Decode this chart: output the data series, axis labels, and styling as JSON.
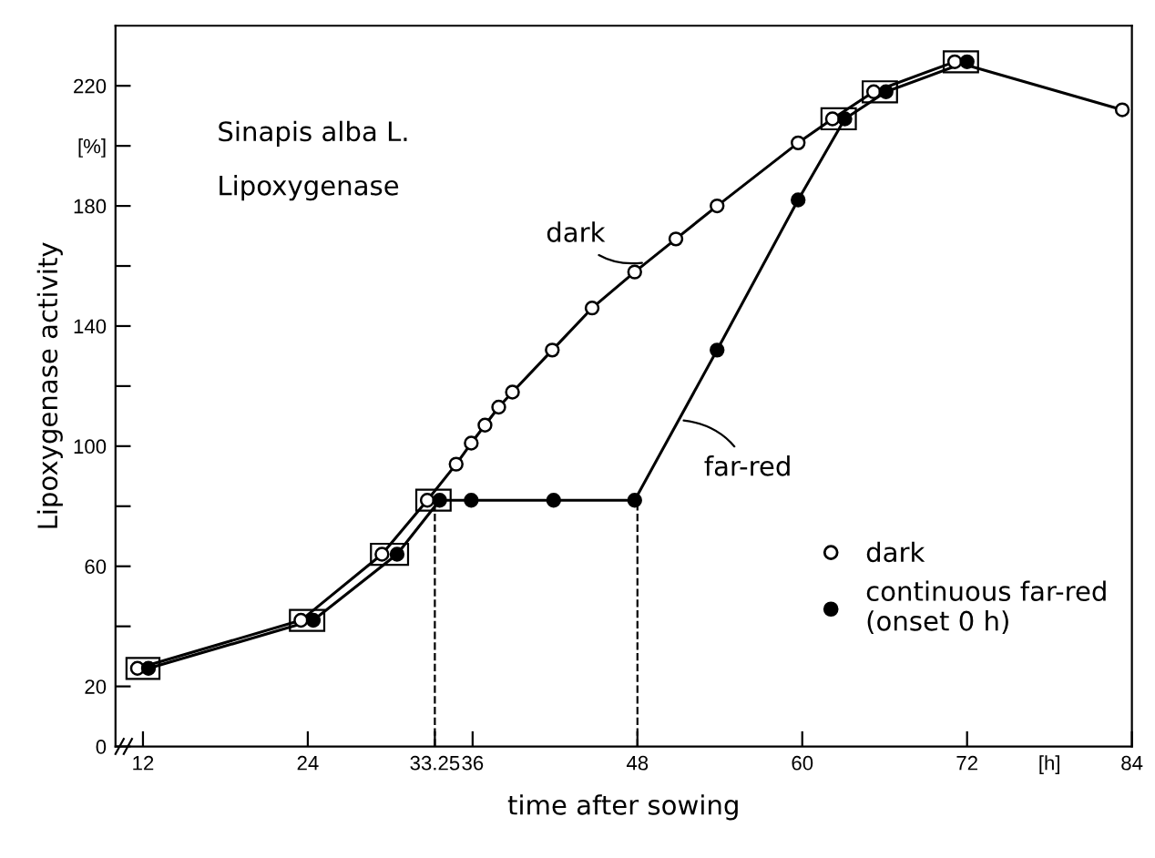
{
  "chart_data": {
    "type": "line",
    "xlabel": "time after sowing",
    "ylabel": "Lipoxygenase activity",
    "annotations": [
      "Sinapis alba L.",
      "Lipoxygenase",
      {
        "text": "dark",
        "x": 48.7,
        "y": 161.3
      },
      {
        "text": "far-red",
        "x": 51,
        "y": 108.7
      }
    ],
    "series": [
      {
        "name": "dark",
        "color": "#000000",
        "marker": "circle",
        "x": [
          11.6,
          23.5,
          29.4,
          32.7,
          34.8,
          35.9,
          36.9,
          37.9,
          38.9,
          41.8,
          44.7,
          47.8,
          50.8,
          53.8,
          59.7,
          62.2,
          65.2,
          71.1,
          83.3
        ],
        "values": [
          26,
          42,
          64,
          82,
          94,
          101,
          107,
          113,
          118,
          132,
          146,
          158,
          169,
          180,
          201,
          209,
          218,
          228,
          212
        ]
      },
      {
        "name": "continuous far-red\n(onset 0 h)",
        "color": "#000000",
        "marker": "circle",
        "x": [
          12.4,
          24.4,
          30.5,
          33.6,
          35.9,
          41.9,
          47.8,
          53.8,
          59.7,
          63.1,
          66.1,
          72.0
        ],
        "values": [
          26,
          42,
          64,
          82,
          82,
          82,
          82,
          132,
          182,
          209,
          218,
          228
        ]
      }
    ],
    "ref_lines": [
      {
        "axis": "x",
        "value": 33.25,
        "line_style": "dashed"
      },
      {
        "axis": "x",
        "value": 48,
        "line_style": "dashed"
      }
    ],
    "xlim": [
      10,
      84
    ],
    "xticks": [
      12,
      24,
      33.25,
      36,
      48,
      60,
      72,
      {
        "value": 78,
        "label": "[h]"
      },
      84
    ],
    "ylim": [
      0,
      240
    ],
    "yticks": [
      0,
      20,
      {
        "value": 40,
        "label": null
      },
      60,
      {
        "value": 80,
        "label": null
      },
      100,
      {
        "value": 120,
        "label": null
      },
      140,
      {
        "value": 160,
        "label": null
      },
      180,
      {
        "value": 200,
        "label": "[%]"
      },
      220
    ],
    "grid": false,
    "legend": "bottom right",
    "line_style": "solid"
  }
}
